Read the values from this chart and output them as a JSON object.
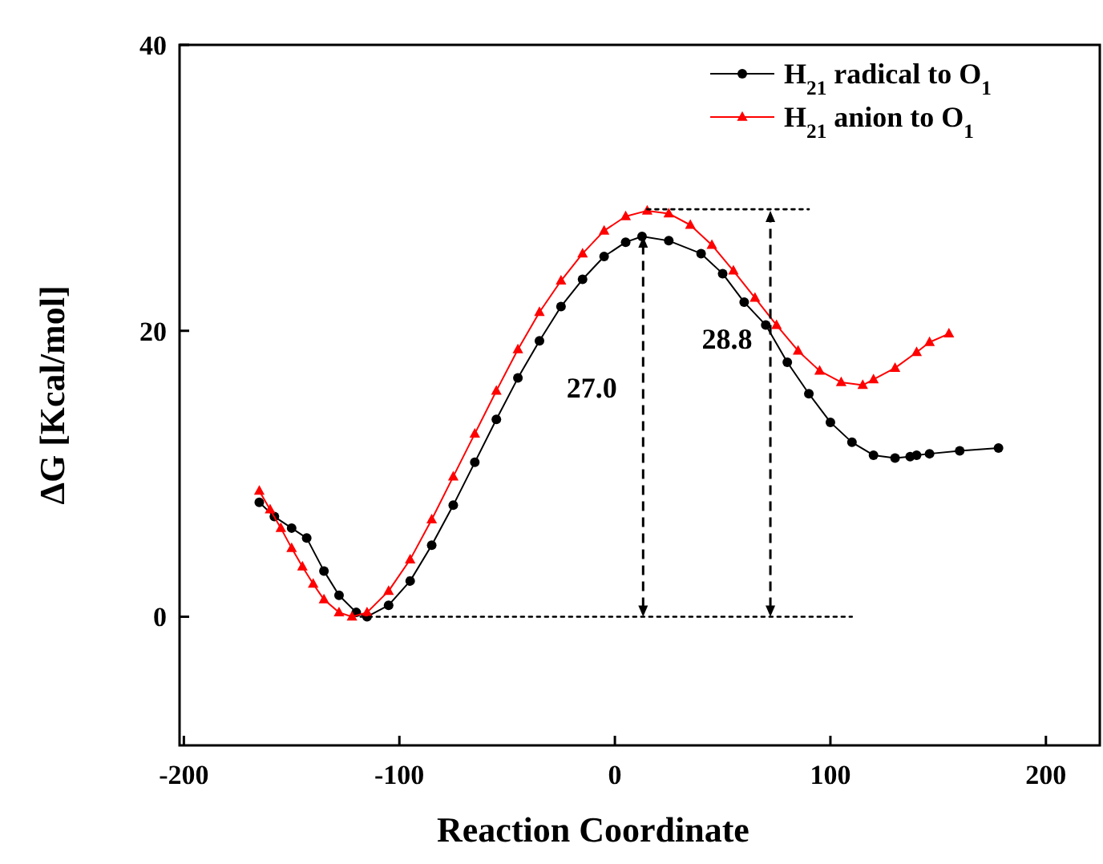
{
  "chart_data": {
    "type": "line",
    "xlabel": "Reaction Coordinate",
    "ylabel": "ΔG [Kcal/mol]",
    "xlim": [
      -202,
      225
    ],
    "ylim": [
      -9,
      40
    ],
    "xticks": [
      -200,
      -100,
      0,
      100,
      200
    ],
    "yticks": [
      0,
      20,
      40
    ],
    "grid": false,
    "legend": "top right",
    "series": [
      {
        "name": "H$_{21}$ radical to O$_{1}$",
        "color": "#000000",
        "marker": "circle",
        "line_style": "solid",
        "x": [
          -165,
          -158,
          -150,
          -143,
          -135,
          -128,
          -120,
          -115,
          -105,
          -95,
          -85,
          -75,
          -65,
          -55,
          -45,
          -35,
          -25,
          -15,
          -5,
          5,
          12.6,
          25,
          40,
          50,
          60,
          70,
          80,
          90,
          100,
          110,
          120,
          130,
          137,
          140,
          146,
          160,
          178
        ],
        "values": [
          8.0,
          7.0,
          6.2,
          5.5,
          3.2,
          1.5,
          0.3,
          0,
          0.8,
          2.5,
          5,
          7.8,
          10.8,
          13.8,
          16.7,
          19.3,
          21.7,
          23.6,
          25.2,
          26.2,
          26.6,
          26.3,
          25.4,
          24,
          22,
          20.4,
          17.8,
          15.6,
          13.6,
          12.2,
          11.3,
          11.1,
          11.2,
          11.3,
          11.4,
          11.6,
          11.8
        ]
      },
      {
        "name": "H$_{21}$ anion to O$_{1}$",
        "color": "#ff0000",
        "marker": "triangle",
        "line_style": "solid",
        "x": [
          -165,
          -160,
          -155,
          -150,
          -145,
          -140,
          -135,
          -128,
          -122,
          -115,
          -105,
          -95,
          -85,
          -75,
          -65,
          -55,
          -45,
          -35,
          -25,
          -15,
          -5,
          5,
          15,
          25,
          35,
          45,
          55,
          65,
          75,
          85,
          95,
          105,
          115,
          120,
          130,
          140,
          146,
          155
        ],
        "values": [
          8.8,
          7.5,
          6.2,
          4.8,
          3.5,
          2.3,
          1.2,
          0.3,
          0,
          0.3,
          1.8,
          4,
          6.8,
          9.8,
          12.8,
          15.8,
          18.7,
          21.3,
          23.5,
          25.4,
          27,
          28,
          28.4,
          28.2,
          27.4,
          26,
          24.2,
          22.3,
          20.4,
          18.6,
          17.2,
          16.4,
          16.2,
          16.6,
          17.4,
          18.5,
          19.2,
          19.8
        ]
      },
      {
        "color": "#000000",
        "marker": "none",
        "line_style": "dotted",
        "x": [
          -118,
          110
        ],
        "values": [
          0,
          0
        ]
      },
      {
        "color": "#000000",
        "marker": "none",
        "line_style": "dotted",
        "x": [
          15,
          90
        ],
        "values": [
          28.5,
          28.5
        ]
      }
    ],
    "annotations": [
      "27.0",
      "28.8"
    ]
  }
}
